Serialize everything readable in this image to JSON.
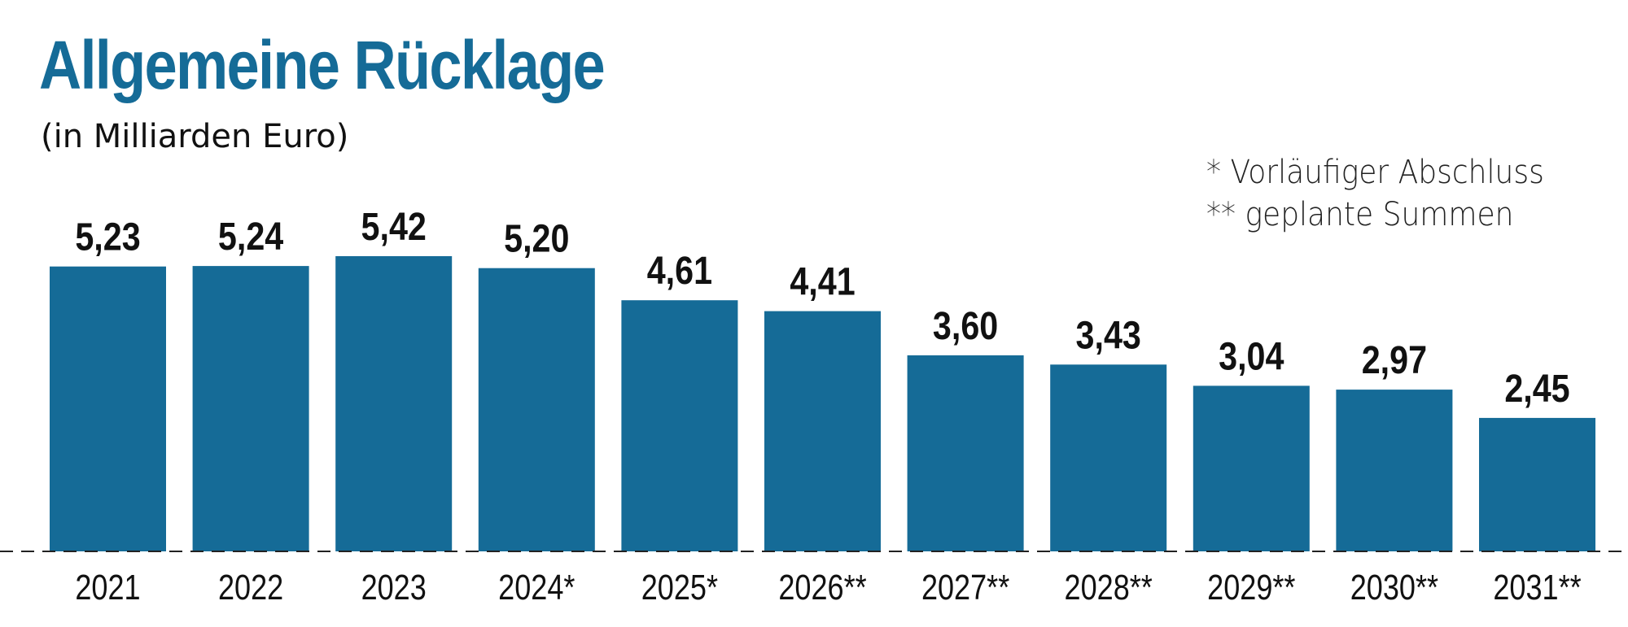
{
  "colors": {
    "bar": "#156b97",
    "title": "#156b97",
    "text": "#111111"
  },
  "notes": [
    "* Vorläufiger Abschluss",
    "** geplante Summen"
  ],
  "chart_data": {
    "type": "bar",
    "title": "Allgemeine Rücklage",
    "subtitle": "(in Milliarden Euro)",
    "categories": [
      "2021",
      "2022",
      "2023",
      "2024*",
      "2025*",
      "2026**",
      "2027**",
      "2028**",
      "2029**",
      "2030**",
      "2031**"
    ],
    "values": [
      5.23,
      5.24,
      5.42,
      5.2,
      4.61,
      4.41,
      3.6,
      3.43,
      3.04,
      2.97,
      2.45
    ],
    "value_labels": [
      "5,23",
      "5,24",
      "5,42",
      "5,20",
      "4,61",
      "4,41",
      "3,60",
      "3,43",
      "3,04",
      "2,97",
      "2,45"
    ],
    "ylim": [
      0,
      5.42
    ],
    "grid": false,
    "baseline_style": "dashed",
    "xlabel": "",
    "ylabel": ""
  }
}
